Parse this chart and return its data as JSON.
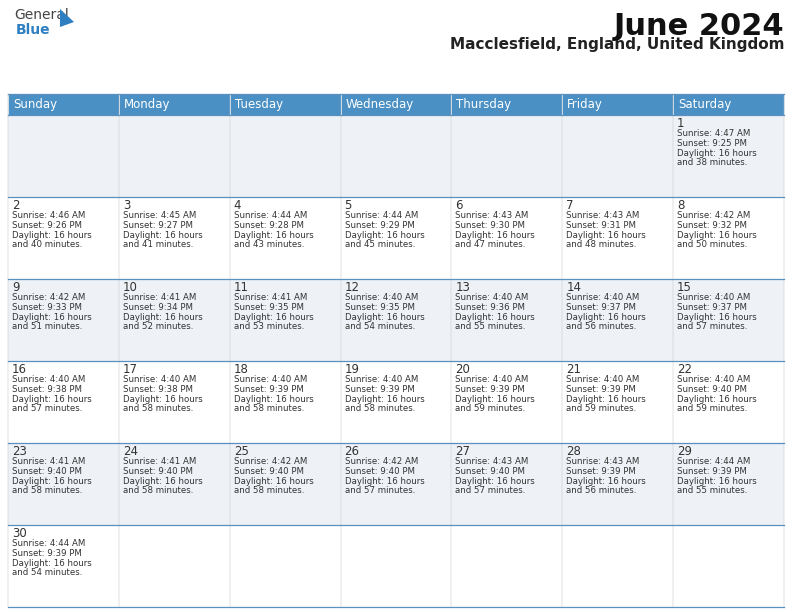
{
  "title": "June 2024",
  "subtitle": "Macclesfield, England, United Kingdom",
  "days_of_week": [
    "Sunday",
    "Monday",
    "Tuesday",
    "Wednesday",
    "Thursday",
    "Friday",
    "Saturday"
  ],
  "header_bg": "#4a90c4",
  "header_text": "#ffffff",
  "row_bg_even": "#eef2f7",
  "row_bg_odd": "#ffffff",
  "cell_border_color": "#5a8fc0",
  "day_num_color": "#333333",
  "text_color": "#333333",
  "calendar_data": [
    [
      null,
      null,
      null,
      null,
      null,
      null,
      {
        "day": "1",
        "sunrise": "4:47 AM",
        "sunset": "9:25 PM",
        "daylight_l1": "Daylight: 16 hours",
        "daylight_l2": "and 38 minutes."
      }
    ],
    [
      {
        "day": "2",
        "sunrise": "4:46 AM",
        "sunset": "9:26 PM",
        "daylight_l1": "Daylight: 16 hours",
        "daylight_l2": "and 40 minutes."
      },
      {
        "day": "3",
        "sunrise": "4:45 AM",
        "sunset": "9:27 PM",
        "daylight_l1": "Daylight: 16 hours",
        "daylight_l2": "and 41 minutes."
      },
      {
        "day": "4",
        "sunrise": "4:44 AM",
        "sunset": "9:28 PM",
        "daylight_l1": "Daylight: 16 hours",
        "daylight_l2": "and 43 minutes."
      },
      {
        "day": "5",
        "sunrise": "4:44 AM",
        "sunset": "9:29 PM",
        "daylight_l1": "Daylight: 16 hours",
        "daylight_l2": "and 45 minutes."
      },
      {
        "day": "6",
        "sunrise": "4:43 AM",
        "sunset": "9:30 PM",
        "daylight_l1": "Daylight: 16 hours",
        "daylight_l2": "and 47 minutes."
      },
      {
        "day": "7",
        "sunrise": "4:43 AM",
        "sunset": "9:31 PM",
        "daylight_l1": "Daylight: 16 hours",
        "daylight_l2": "and 48 minutes."
      },
      {
        "day": "8",
        "sunrise": "4:42 AM",
        "sunset": "9:32 PM",
        "daylight_l1": "Daylight: 16 hours",
        "daylight_l2": "and 50 minutes."
      }
    ],
    [
      {
        "day": "9",
        "sunrise": "4:42 AM",
        "sunset": "9:33 PM",
        "daylight_l1": "Daylight: 16 hours",
        "daylight_l2": "and 51 minutes."
      },
      {
        "day": "10",
        "sunrise": "4:41 AM",
        "sunset": "9:34 PM",
        "daylight_l1": "Daylight: 16 hours",
        "daylight_l2": "and 52 minutes."
      },
      {
        "day": "11",
        "sunrise": "4:41 AM",
        "sunset": "9:35 PM",
        "daylight_l1": "Daylight: 16 hours",
        "daylight_l2": "and 53 minutes."
      },
      {
        "day": "12",
        "sunrise": "4:40 AM",
        "sunset": "9:35 PM",
        "daylight_l1": "Daylight: 16 hours",
        "daylight_l2": "and 54 minutes."
      },
      {
        "day": "13",
        "sunrise": "4:40 AM",
        "sunset": "9:36 PM",
        "daylight_l1": "Daylight: 16 hours",
        "daylight_l2": "and 55 minutes."
      },
      {
        "day": "14",
        "sunrise": "4:40 AM",
        "sunset": "9:37 PM",
        "daylight_l1": "Daylight: 16 hours",
        "daylight_l2": "and 56 minutes."
      },
      {
        "day": "15",
        "sunrise": "4:40 AM",
        "sunset": "9:37 PM",
        "daylight_l1": "Daylight: 16 hours",
        "daylight_l2": "and 57 minutes."
      }
    ],
    [
      {
        "day": "16",
        "sunrise": "4:40 AM",
        "sunset": "9:38 PM",
        "daylight_l1": "Daylight: 16 hours",
        "daylight_l2": "and 57 minutes."
      },
      {
        "day": "17",
        "sunrise": "4:40 AM",
        "sunset": "9:38 PM",
        "daylight_l1": "Daylight: 16 hours",
        "daylight_l2": "and 58 minutes."
      },
      {
        "day": "18",
        "sunrise": "4:40 AM",
        "sunset": "9:39 PM",
        "daylight_l1": "Daylight: 16 hours",
        "daylight_l2": "and 58 minutes."
      },
      {
        "day": "19",
        "sunrise": "4:40 AM",
        "sunset": "9:39 PM",
        "daylight_l1": "Daylight: 16 hours",
        "daylight_l2": "and 58 minutes."
      },
      {
        "day": "20",
        "sunrise": "4:40 AM",
        "sunset": "9:39 PM",
        "daylight_l1": "Daylight: 16 hours",
        "daylight_l2": "and 59 minutes."
      },
      {
        "day": "21",
        "sunrise": "4:40 AM",
        "sunset": "9:39 PM",
        "daylight_l1": "Daylight: 16 hours",
        "daylight_l2": "and 59 minutes."
      },
      {
        "day": "22",
        "sunrise": "4:40 AM",
        "sunset": "9:40 PM",
        "daylight_l1": "Daylight: 16 hours",
        "daylight_l2": "and 59 minutes."
      }
    ],
    [
      {
        "day": "23",
        "sunrise": "4:41 AM",
        "sunset": "9:40 PM",
        "daylight_l1": "Daylight: 16 hours",
        "daylight_l2": "and 58 minutes."
      },
      {
        "day": "24",
        "sunrise": "4:41 AM",
        "sunset": "9:40 PM",
        "daylight_l1": "Daylight: 16 hours",
        "daylight_l2": "and 58 minutes."
      },
      {
        "day": "25",
        "sunrise": "4:42 AM",
        "sunset": "9:40 PM",
        "daylight_l1": "Daylight: 16 hours",
        "daylight_l2": "and 58 minutes."
      },
      {
        "day": "26",
        "sunrise": "4:42 AM",
        "sunset": "9:40 PM",
        "daylight_l1": "Daylight: 16 hours",
        "daylight_l2": "and 57 minutes."
      },
      {
        "day": "27",
        "sunrise": "4:43 AM",
        "sunset": "9:40 PM",
        "daylight_l1": "Daylight: 16 hours",
        "daylight_l2": "and 57 minutes."
      },
      {
        "day": "28",
        "sunrise": "4:43 AM",
        "sunset": "9:39 PM",
        "daylight_l1": "Daylight: 16 hours",
        "daylight_l2": "and 56 minutes."
      },
      {
        "day": "29",
        "sunrise": "4:44 AM",
        "sunset": "9:39 PM",
        "daylight_l1": "Daylight: 16 hours",
        "daylight_l2": "and 55 minutes."
      }
    ],
    [
      {
        "day": "30",
        "sunrise": "4:44 AM",
        "sunset": "9:39 PM",
        "daylight_l1": "Daylight: 16 hours",
        "daylight_l2": "and 54 minutes."
      },
      null,
      null,
      null,
      null,
      null,
      null
    ]
  ]
}
